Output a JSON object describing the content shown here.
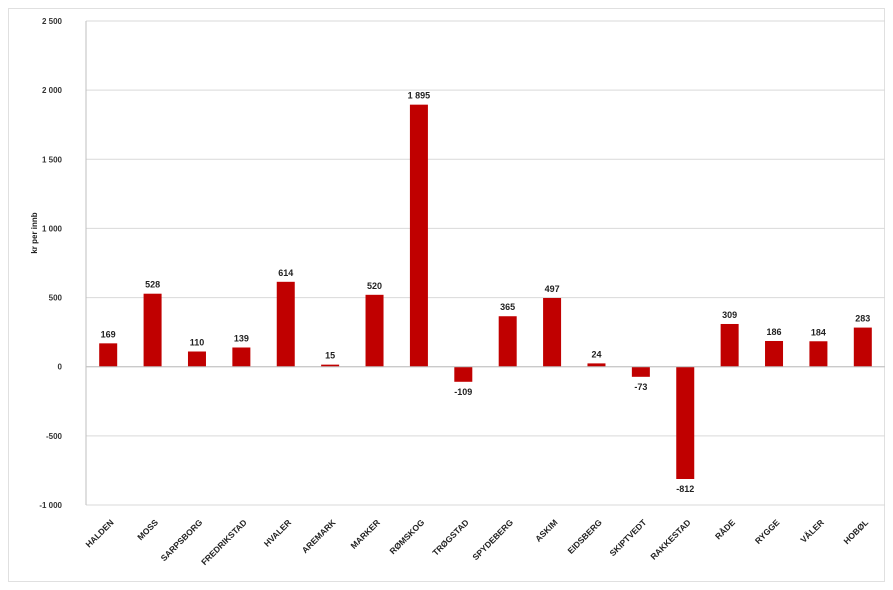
{
  "chart_data": {
    "type": "bar",
    "title": "",
    "ylabel": "kr per innb",
    "xlabel": "",
    "ylim": [
      -1000,
      2500
    ],
    "yticks": [
      2500,
      2000,
      1500,
      1000,
      500,
      0,
      -500,
      -1000
    ],
    "ytick_labels": [
      "2 500",
      "2 000",
      "1 500",
      "1 000",
      "500",
      "0",
      "-500",
      "-1 000"
    ],
    "grid": true,
    "legend": "none",
    "bar_color": "#c00000",
    "categories": [
      "HALDEN",
      "MOSS",
      "SARPSBORG",
      "FREDRIKSTAD",
      "HVALER",
      "AREMARK",
      "MARKER",
      "RØMSKOG",
      "TRØGSTAD",
      "SPYDEBERG",
      "ASKIM",
      "EIDSBERG",
      "SKIPTVEDT",
      "RAKKESTAD",
      "RÅDE",
      "RYGGE",
      "VÅLER",
      "HOBØL"
    ],
    "values": [
      169,
      528,
      110,
      139,
      614,
      15,
      520,
      1895,
      -109,
      365,
      497,
      24,
      -73,
      -812,
      309,
      186,
      184,
      283
    ],
    "value_labels": [
      "169",
      "528",
      "110",
      "139",
      "614",
      "15",
      "520",
      "1 895",
      "-109",
      "365",
      "497",
      "24",
      "-73",
      "-812",
      "309",
      "186",
      "184",
      "283"
    ]
  }
}
